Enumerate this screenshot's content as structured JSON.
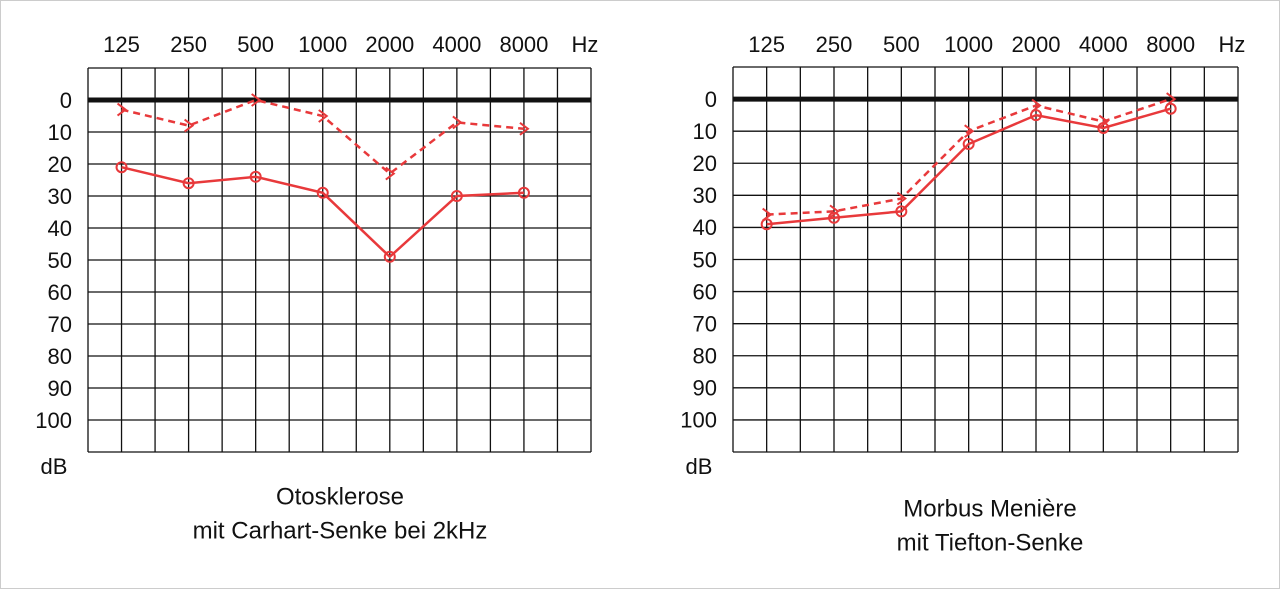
{
  "chart_data": [
    {
      "type": "line",
      "title": [
        "Otosklerose",
        "mit Carhart-Senke bei 2kHz"
      ],
      "xlabel": "Hz",
      "ylabel": "dB",
      "categories": [
        "125",
        "250",
        "500",
        "1000",
        "2000",
        "4000",
        "8000"
      ],
      "ylim": [
        -10,
        110
      ],
      "yticks": [
        0,
        10,
        20,
        30,
        40,
        50,
        60,
        70,
        80,
        90,
        100
      ],
      "y_reversed": true,
      "grid": true,
      "zero_line": true,
      "series": [
        {
          "color": "#e8393b",
          "marker": "circle",
          "dashed": false,
          "values": [
            21,
            26,
            24,
            29,
            49,
            30,
            29
          ]
        },
        {
          "color": "#e8393b",
          "marker": "arrow",
          "dashed": true,
          "values": [
            3,
            8,
            0,
            5,
            23,
            7,
            9
          ]
        }
      ]
    },
    {
      "type": "line",
      "title": [
        "Morbus Menière",
        "mit Tiefton-Senke"
      ],
      "xlabel": "Hz",
      "ylabel": "dB",
      "categories": [
        "125",
        "250",
        "500",
        "1000",
        "2000",
        "4000",
        "8000"
      ],
      "ylim": [
        -10,
        110
      ],
      "yticks": [
        0,
        10,
        20,
        30,
        40,
        50,
        60,
        70,
        80,
        90,
        100
      ],
      "y_reversed": true,
      "grid": true,
      "zero_line": true,
      "series": [
        {
          "color": "#e8393b",
          "marker": "circle",
          "dashed": false,
          "values": [
            39,
            37,
            35,
            14,
            5,
            9,
            3
          ]
        },
        {
          "color": "#e8393b",
          "marker": "arrow",
          "dashed": true,
          "values": [
            36,
            35,
            31,
            10,
            2,
            7,
            0
          ]
        }
      ]
    }
  ]
}
